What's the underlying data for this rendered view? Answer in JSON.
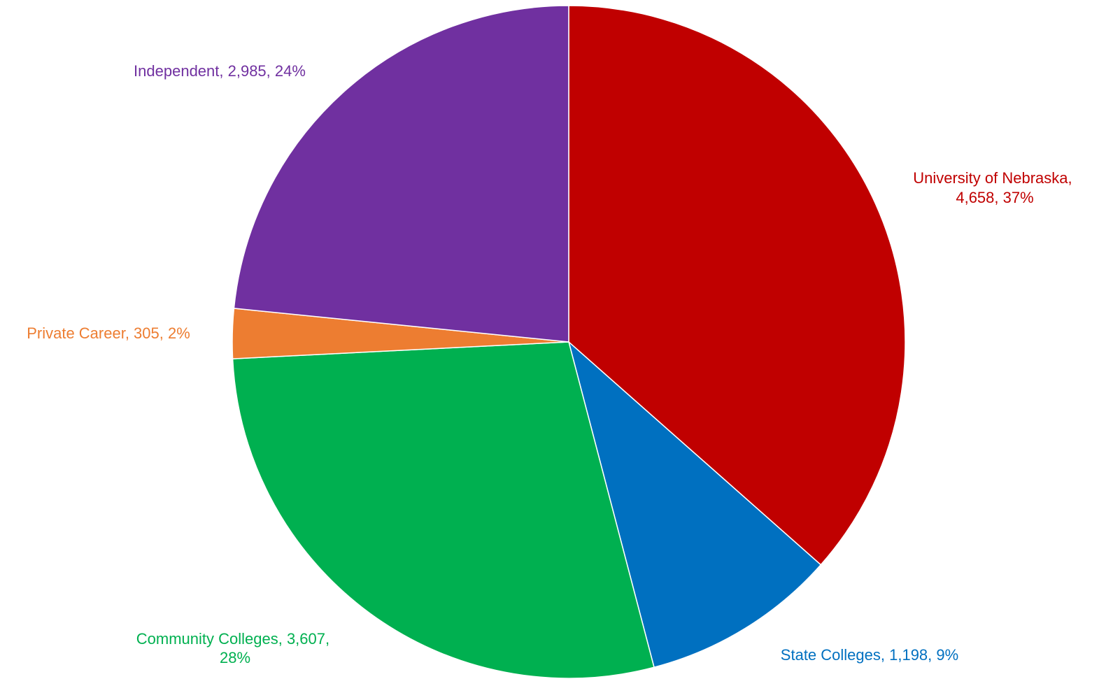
{
  "chart_data": {
    "type": "pie",
    "title": "",
    "start_angle_deg": 0,
    "direction": "clockwise",
    "slices": [
      {
        "key": "university-of-nebraska",
        "label": "University of Nebraska,",
        "label_line2": "4,658, 37%",
        "value": 4658,
        "percent": "37%",
        "color": "#C00000"
      },
      {
        "key": "state-colleges",
        "label": "State Colleges, 1,198, 9%",
        "label_line2": "",
        "value": 1198,
        "percent": "9%",
        "color": "#0070C0"
      },
      {
        "key": "community-colleges",
        "label": "Community Colleges, 3,607,",
        "label_line2": "28%",
        "value": 3607,
        "percent": "28%",
        "color": "#00B050"
      },
      {
        "key": "private-career",
        "label": "Private Career, 305, 2%",
        "label_line2": "",
        "value": 305,
        "percent": "2%",
        "color": "#ED7D31"
      },
      {
        "key": "independent",
        "label": "Independent, 2,985, 24%",
        "label_line2": "",
        "value": 2985,
        "percent": "24%",
        "color": "#7030A0"
      }
    ]
  }
}
